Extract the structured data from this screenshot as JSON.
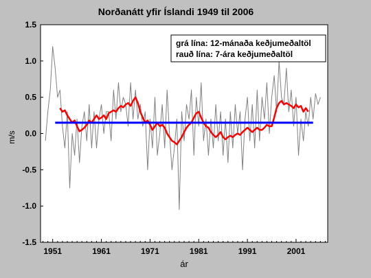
{
  "chart_data": {
    "type": "line",
    "title": "Norðanátt yfir Íslandi 1949 til 2006",
    "xlabel": "ár",
    "ylabel": "m/s",
    "xlim": [
      1948.5,
      2007.5
    ],
    "ylim": [
      -1.5,
      1.5
    ],
    "x_ticks": [
      1951,
      1961,
      1971,
      1981,
      1991,
      2001
    ],
    "y_ticks": [
      "1.5",
      "1.0",
      "0.5",
      "0.0",
      "-0.5",
      "-1.0",
      "-1.5"
    ],
    "legend": {
      "placement": "top-right",
      "entries": [
        "grá lína: 12-mánaða keðjumeðaltöl",
        "rauð lína: 7-ára keðjumeðaltöl"
      ]
    },
    "series": [
      {
        "color": "#808080",
        "x": [
          1949.5,
          1950.0,
          1950.5,
          1951.0,
          1951.5,
          1952.0,
          1952.5,
          1953.0,
          1953.5,
          1954.0,
          1954.5,
          1955.0,
          1955.5,
          1956.0,
          1956.5,
          1957.0,
          1957.5,
          1958.0,
          1958.5,
          1959.0,
          1959.5,
          1960.0,
          1960.5,
          1961.0,
          1961.5,
          1962.0,
          1962.5,
          1963.0,
          1963.5,
          1964.0,
          1964.5,
          1965.0,
          1965.5,
          1966.0,
          1966.5,
          1967.0,
          1967.5,
          1968.0,
          1968.5,
          1969.0,
          1969.5,
          1970.0,
          1970.5,
          1971.0,
          1971.5,
          1972.0,
          1972.5,
          1973.0,
          1973.5,
          1974.0,
          1974.5,
          1975.0,
          1975.5,
          1976.0,
          1976.5,
          1977.0,
          1977.5,
          1978.0,
          1978.5,
          1979.0,
          1979.5,
          1980.0,
          1980.5,
          1981.0,
          1981.5,
          1982.0,
          1982.5,
          1983.0,
          1983.5,
          1984.0,
          1984.5,
          1985.0,
          1985.5,
          1986.0,
          1986.5,
          1987.0,
          1987.5,
          1988.0,
          1988.5,
          1989.0,
          1989.5,
          1990.0,
          1990.5,
          1991.0,
          1991.5,
          1992.0,
          1992.5,
          1993.0,
          1993.5,
          1994.0,
          1994.5,
          1995.0,
          1995.5,
          1996.0,
          1996.5,
          1997.0,
          1997.5,
          1998.0,
          1998.5,
          1999.0,
          1999.5,
          2000.0,
          2000.5,
          2001.0,
          2001.5,
          2002.0,
          2002.5,
          2003.0,
          2003.5,
          2004.0,
          2004.5,
          2005.0,
          2005.5,
          2006.0
        ],
        "y": [
          -0.1,
          0.3,
          0.6,
          1.2,
          0.9,
          0.5,
          0.6,
          0.1,
          -0.2,
          0.3,
          -0.75,
          0.0,
          -0.3,
          0.2,
          -0.4,
          0.1,
          0.3,
          -0.1,
          0.4,
          -0.2,
          0.3,
          -0.2,
          0.2,
          0.4,
          0.0,
          0.3,
          0.3,
          -0.1,
          0.6,
          0.2,
          0.7,
          0.3,
          0.5,
          0.4,
          0.1,
          0.7,
          0.2,
          0.6,
          0.2,
          0.4,
          0.1,
          0.3,
          -0.5,
          0.2,
          -0.2,
          0.5,
          -0.3,
          0.0,
          0.4,
          -0.2,
          0.6,
          0.0,
          -0.5,
          -0.2,
          0.2,
          -1.05,
          0.3,
          -0.1,
          0.4,
          0.2,
          0.6,
          -0.3,
          0.5,
          0.1,
          0.7,
          -0.1,
          0.2,
          -0.3,
          0.2,
          -0.2,
          0.4,
          -0.1,
          0.3,
          -0.3,
          0.2,
          -0.4,
          0.3,
          -0.2,
          0.4,
          0.0,
          0.3,
          -0.5,
          0.2,
          0.5,
          -0.1,
          0.4,
          -0.2,
          0.6,
          -0.1,
          0.5,
          0.2,
          0.7,
          0.0,
          0.5,
          0.8,
          0.3,
          1.0,
          0.5,
          0.4,
          0.9,
          0.3,
          0.6,
          0.1,
          0.5,
          -0.3,
          0.2,
          -0.1,
          0.3,
          0.1,
          0.5,
          0.2,
          0.55,
          0.4,
          0.5
        ]
      },
      {
        "color": "#ff0000",
        "x": [
          1952.5,
          1953.0,
          1953.5,
          1954.0,
          1954.5,
          1955.0,
          1955.5,
          1956.0,
          1956.5,
          1957.0,
          1957.5,
          1958.0,
          1958.5,
          1959.0,
          1959.5,
          1960.0,
          1960.5,
          1961.0,
          1961.5,
          1962.0,
          1962.5,
          1963.0,
          1963.5,
          1964.0,
          1964.5,
          1965.0,
          1965.5,
          1966.0,
          1966.5,
          1967.0,
          1967.5,
          1968.0,
          1968.5,
          1969.0,
          1969.5,
          1970.0,
          1970.5,
          1971.0,
          1971.5,
          1972.0,
          1972.5,
          1973.0,
          1973.5,
          1974.0,
          1974.5,
          1975.0,
          1975.5,
          1976.0,
          1976.5,
          1977.0,
          1977.5,
          1978.0,
          1978.5,
          1979.0,
          1979.5,
          1980.0,
          1980.5,
          1981.0,
          1981.5,
          1982.0,
          1982.5,
          1983.0,
          1983.5,
          1984.0,
          1984.5,
          1985.0,
          1985.5,
          1986.0,
          1986.5,
          1987.0,
          1987.5,
          1988.0,
          1988.5,
          1989.0,
          1989.5,
          1990.0,
          1990.5,
          1991.0,
          1991.5,
          1992.0,
          1992.5,
          1993.0,
          1993.5,
          1994.0,
          1994.5,
          1995.0,
          1995.5,
          1996.0,
          1996.5,
          1997.0,
          1997.5,
          1998.0,
          1998.5,
          1999.0,
          1999.5,
          2000.0,
          2000.5,
          2001.0,
          2001.5,
          2002.0,
          2002.5,
          2003.0,
          2003.5
        ],
        "y": [
          0.35,
          0.3,
          0.32,
          0.25,
          0.2,
          0.15,
          0.18,
          0.1,
          0.03,
          0.05,
          0.08,
          0.12,
          0.18,
          0.15,
          0.2,
          0.25,
          0.2,
          0.22,
          0.25,
          0.2,
          0.28,
          0.3,
          0.32,
          0.3,
          0.35,
          0.38,
          0.36,
          0.4,
          0.42,
          0.38,
          0.45,
          0.5,
          0.42,
          0.3,
          0.22,
          0.15,
          0.18,
          0.12,
          0.05,
          0.1,
          0.15,
          0.1,
          0.12,
          0.08,
          0.0,
          -0.05,
          -0.1,
          -0.12,
          -0.15,
          -0.1,
          -0.05,
          0.02,
          0.08,
          0.12,
          0.15,
          0.22,
          0.28,
          0.3,
          0.22,
          0.15,
          0.1,
          0.08,
          0.02,
          -0.02,
          -0.05,
          -0.02,
          0.02,
          -0.05,
          -0.08,
          -0.05,
          -0.03,
          -0.05,
          -0.02,
          0.0,
          -0.02,
          0.02,
          0.05,
          0.08,
          0.05,
          0.02,
          0.05,
          0.08,
          0.05,
          0.05,
          0.08,
          0.12,
          0.1,
          0.1,
          0.22,
          0.35,
          0.42,
          0.45,
          0.4,
          0.42,
          0.4,
          0.38,
          0.35,
          0.4,
          0.36,
          0.38,
          0.3,
          0.35,
          0.3
        ]
      },
      {
        "color": "#0000ff",
        "x": [
          1951.5,
          2004.5
        ],
        "y": [
          0.15,
          0.15
        ]
      }
    ]
  }
}
